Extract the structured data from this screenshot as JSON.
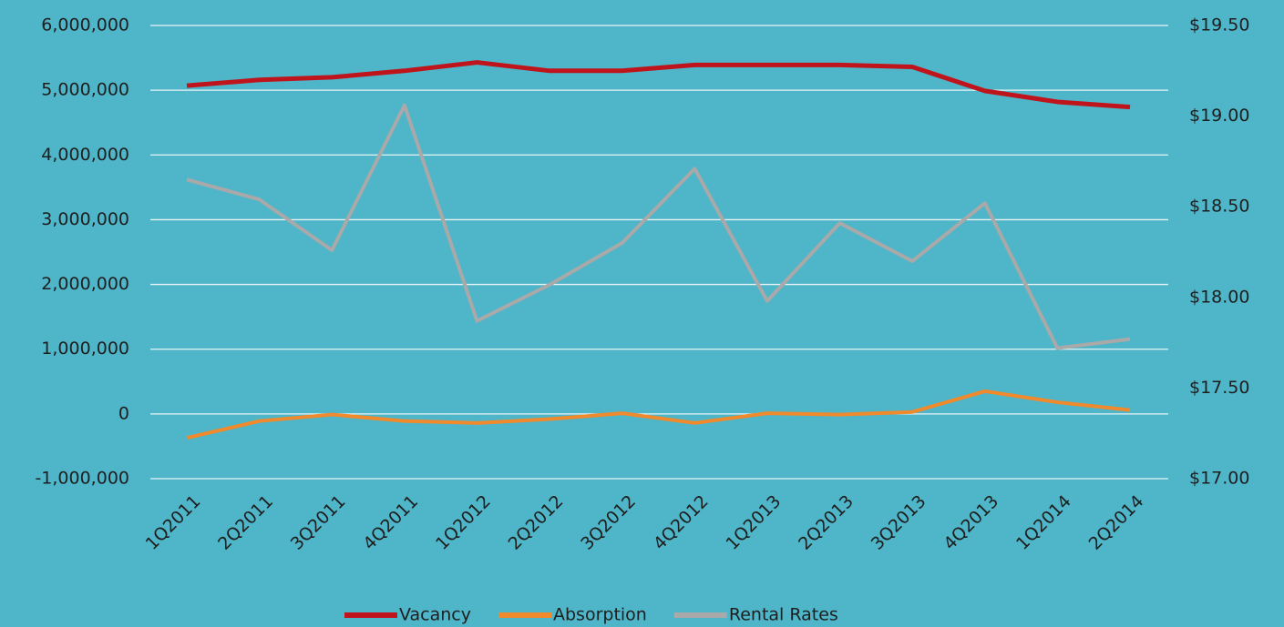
{
  "chart_data": {
    "type": "line",
    "categories": [
      "1Q2011",
      "2Q2011",
      "3Q2011",
      "4Q2011",
      "1Q2012",
      "2Q2012",
      "3Q2012",
      "4Q2012",
      "1Q2013",
      "2Q2013",
      "3Q2013",
      "4Q2013",
      "1Q2014",
      "2Q2014"
    ],
    "series": [
      {
        "name": "Vacancy",
        "color": "#c0141c",
        "values": [
          5070000,
          5160000,
          5200000,
          5300000,
          5430000,
          5300000,
          5300000,
          5390000,
          5390000,
          5390000,
          5360000,
          4990000,
          4820000,
          4740000
        ]
      },
      {
        "name": "Absorption",
        "color": "#f08a2c",
        "values": [
          -370000,
          -110000,
          -10000,
          -110000,
          -140000,
          -80000,
          10000,
          -140000,
          10000,
          -10000,
          30000,
          350000,
          180000,
          60000
        ]
      },
      {
        "name": "Rental Rates",
        "color": "#a9a9a9",
        "axis": "y2",
        "values": [
          18.65,
          18.54,
          18.26,
          19.06,
          17.87,
          18.07,
          18.3,
          18.71,
          17.98,
          18.41,
          18.2,
          18.52,
          17.72,
          17.77
        ]
      }
    ],
    "ylim": [
      -1000000,
      6000000
    ],
    "yticks": [
      {
        "value": -1000000,
        "label": "-1,000,000"
      },
      0,
      {
        "value": 1000000,
        "label": "1,000,000"
      },
      {
        "value": 2000000,
        "label": "2,000,000"
      },
      {
        "value": 3000000,
        "label": "3,000,000"
      },
      {
        "value": 4000000,
        "label": "4,000,000"
      },
      {
        "value": 5000000,
        "label": "5,000,000"
      },
      {
        "value": 6000000,
        "label": "6,000,000"
      }
    ],
    "y2lim": [
      17.0,
      19.5
    ],
    "y2ticks": [
      {
        "value": 17.0,
        "label": "$17.00"
      },
      {
        "value": 17.5,
        "label": "$17.50"
      },
      {
        "value": 18.0,
        "label": "$18.00"
      },
      {
        "value": 18.5,
        "label": "$18.50"
      },
      {
        "value": 19.0,
        "label": "$19.00"
      },
      {
        "value": 19.5,
        "label": "$19.50"
      }
    ],
    "grid": true,
    "legend": "bottom"
  }
}
